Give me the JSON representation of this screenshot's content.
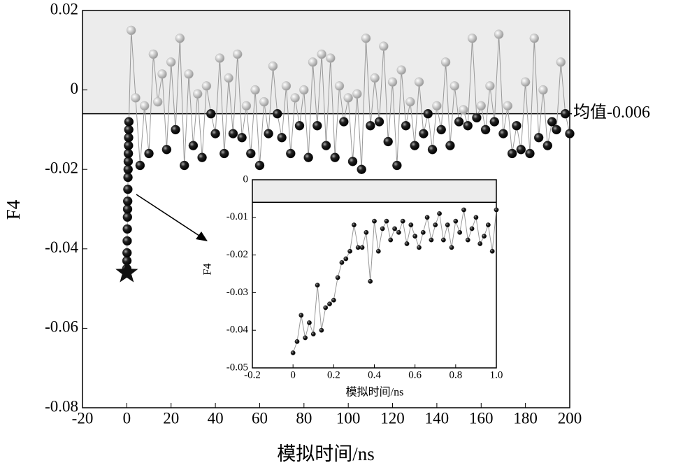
{
  "chart_data": [
    {
      "type": "line",
      "x_label": "模拟时间/ns",
      "y_label": "F4",
      "xlim": [
        -20,
        200
      ],
      "ylim": [
        -0.08,
        0.02
      ],
      "xticks": [
        -20,
        0,
        20,
        40,
        60,
        80,
        100,
        120,
        140,
        160,
        180,
        200
      ],
      "yticks": [
        -0.08,
        -0.06,
        -0.04,
        -0.02,
        0,
        0.02
      ],
      "mean": -0.006,
      "mean_label": "均值-0.006",
      "color_above": "#b8b8b8",
      "color_below": "#1e1e1e",
      "shade": "#ececec",
      "star": {
        "x": 0,
        "y": -0.046
      },
      "x": [
        0,
        0.06,
        0.12,
        0.18,
        0.24,
        0.3,
        0.36,
        0.42,
        0.48,
        0.54,
        0.6,
        0.66,
        0.72,
        0.78,
        0.84,
        0.9,
        0.96,
        2,
        4,
        6,
        8,
        10,
        12,
        14,
        16,
        18,
        20,
        22,
        24,
        26,
        28,
        30,
        32,
        34,
        36,
        38,
        40,
        42,
        44,
        46,
        48,
        50,
        52,
        54,
        56,
        58,
        60,
        62,
        64,
        66,
        68,
        70,
        72,
        74,
        76,
        78,
        80,
        82,
        84,
        86,
        88,
        90,
        92,
        94,
        96,
        98,
        100,
        102,
        104,
        106,
        108,
        110,
        112,
        114,
        116,
        118,
        120,
        122,
        124,
        126,
        128,
        130,
        132,
        134,
        136,
        138,
        140,
        142,
        144,
        146,
        148,
        150,
        152,
        154,
        156,
        158,
        160,
        162,
        164,
        166,
        168,
        170,
        172,
        174,
        176,
        178,
        180,
        182,
        184,
        186,
        188,
        190,
        192,
        194,
        196,
        198,
        200
      ],
      "values": [
        -0.045,
        -0.043,
        -0.041,
        -0.038,
        -0.035,
        -0.032,
        -0.03,
        -0.028,
        -0.025,
        -0.022,
        -0.02,
        -0.018,
        -0.016,
        -0.014,
        -0.012,
        -0.01,
        -0.008,
        0.015,
        -0.002,
        -0.019,
        -0.004,
        -0.016,
        0.009,
        -0.003,
        0.004,
        -0.015,
        0.007,
        -0.01,
        0.013,
        -0.019,
        0.004,
        -0.014,
        -0.001,
        -0.017,
        0.001,
        -0.006,
        -0.011,
        0.008,
        -0.016,
        0.003,
        -0.011,
        0.009,
        -0.012,
        -0.004,
        -0.016,
        0,
        -0.019,
        -0.003,
        -0.011,
        0.006,
        -0.006,
        -0.012,
        0.001,
        -0.016,
        -0.002,
        -0.009,
        0,
        -0.017,
        0.007,
        -0.009,
        0.009,
        -0.014,
        0.008,
        -0.017,
        0.001,
        -0.008,
        -0.002,
        -0.018,
        -0.001,
        -0.02,
        0.013,
        -0.009,
        0.003,
        -0.008,
        0.011,
        -0.013,
        0.002,
        -0.019,
        0.005,
        -0.009,
        -0.003,
        -0.014,
        0.002,
        -0.011,
        -0.006,
        -0.015,
        -0.004,
        -0.01,
        0.007,
        -0.014,
        0.001,
        -0.008,
        -0.005,
        -0.009,
        0.013,
        -0.007,
        -0.004,
        -0.01,
        0.001,
        -0.008,
        0.014,
        -0.011,
        -0.004,
        -0.016,
        -0.009,
        -0.015,
        0.002,
        -0.016,
        0.013,
        -0.012,
        0,
        -0.014,
        -0.008,
        -0.01,
        0.007,
        -0.006,
        -0.011
      ]
    },
    {
      "type": "line",
      "x_label": "模拟时间/ns",
      "y_label": "F4",
      "xlim": [
        -0.2,
        1.0
      ],
      "ylim": [
        -0.05,
        0
      ],
      "xticks": [
        -0.2,
        0,
        0.2,
        0.4,
        0.6,
        0.8,
        {
          "value": 1.0,
          "label": "1.0"
        }
      ],
      "yticks": [
        -0.05,
        -0.04,
        -0.03,
        -0.02,
        -0.01,
        0
      ],
      "mean": -0.006,
      "color_above": "#1e1e1e",
      "color_below": "#1e1e1e",
      "shade": "#ececec",
      "x": [
        0,
        0.02,
        0.04,
        0.06,
        0.08,
        0.1,
        0.12,
        0.14,
        0.16,
        0.18,
        0.2,
        0.22,
        0.24,
        0.26,
        0.28,
        0.3,
        0.32,
        0.34,
        0.36,
        0.38,
        0.4,
        0.42,
        0.44,
        0.46,
        0.48,
        0.5,
        0.52,
        0.54,
        0.56,
        0.58,
        0.6,
        0.62,
        0.64,
        0.66,
        0.68,
        0.7,
        0.72,
        0.74,
        0.76,
        0.78,
        0.8,
        0.82,
        0.84,
        0.86,
        0.88,
        0.9,
        0.92,
        0.94,
        0.96,
        0.98,
        1.0
      ],
      "values": [
        -0.046,
        -0.043,
        -0.036,
        -0.042,
        -0.038,
        -0.041,
        -0.028,
        -0.04,
        -0.034,
        -0.033,
        -0.032,
        -0.026,
        -0.022,
        -0.021,
        -0.019,
        -0.012,
        -0.018,
        -0.018,
        -0.014,
        -0.027,
        -0.011,
        -0.019,
        -0.013,
        -0.011,
        -0.016,
        -0.013,
        -0.014,
        -0.011,
        -0.017,
        -0.012,
        -0.015,
        -0.018,
        -0.014,
        -0.01,
        -0.016,
        -0.012,
        -0.009,
        -0.016,
        -0.012,
        -0.018,
        -0.011,
        -0.014,
        -0.008,
        -0.016,
        -0.013,
        -0.01,
        -0.017,
        -0.015,
        -0.012,
        -0.019,
        -0.008
      ]
    }
  ]
}
